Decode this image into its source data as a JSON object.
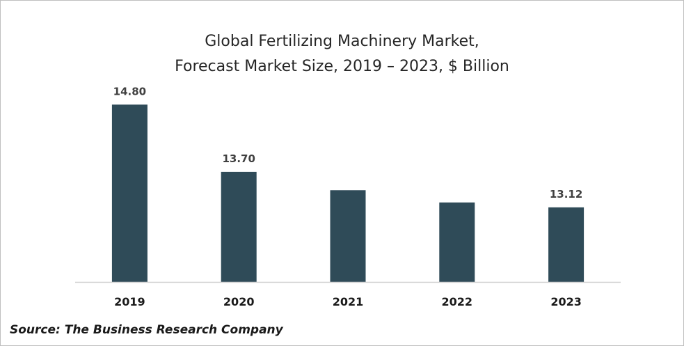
{
  "chart_data": {
    "type": "bar",
    "title_line1": "Global Fertilizing Machinery Market,",
    "title_line2": "Forecast Market Size, 2019 – 2023, $ Billion",
    "categories": [
      "2019",
      "2020",
      "2021",
      "2022",
      "2023"
    ],
    "values": [
      14.8,
      13.7,
      13.4,
      13.2,
      13.12
    ],
    "data_labels": [
      "14.80",
      "13.70",
      "",
      "",
      "13.12"
    ],
    "ylim": [
      11.9,
      15.6
    ],
    "xlabel": "",
    "ylabel": "",
    "grid": false,
    "legend": "none",
    "bar_color": "#2f4b58"
  },
  "source": "Source: The Business Research Company"
}
